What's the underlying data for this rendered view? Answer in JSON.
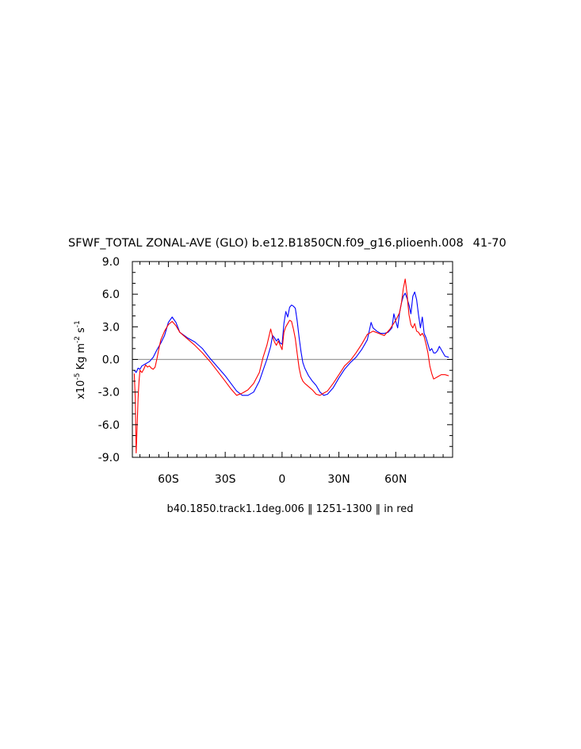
{
  "chart_data": {
    "type": "line",
    "title": "SFWF_TOTAL ZONAL-AVE (GLO) b.e12.B1850CN.f09_g16.plioenh.008  41-70 ",
    "title_markers": [
      "‖",
      "‖"
    ],
    "subtitle": "b40.1850.track1.1deg.006 ‖ 1251-1300 ‖ in red",
    "xlabel": "",
    "ylabel": {
      "prefix": "x10",
      "exp": "-5",
      "unit": "Kg m",
      "unit_exp": "-2",
      "unit2": "s",
      "unit2_exp": "-1"
    },
    "xlim": [
      -79,
      90
    ],
    "ylim": [
      -9,
      9
    ],
    "grid": false,
    "zero_line": true,
    "x_ticks": [
      {
        "value": -60,
        "label": "60S"
      },
      {
        "value": -30,
        "label": "30S"
      },
      {
        "value": 0,
        "label": "0"
      },
      {
        "value": 30,
        "label": "30N"
      },
      {
        "value": 60,
        "label": "60N"
      }
    ],
    "y_ticks": [
      {
        "value": 9,
        "label": "9.0"
      },
      {
        "value": 6,
        "label": "6.0"
      },
      {
        "value": 3,
        "label": "3.0"
      },
      {
        "value": 0,
        "label": "0.0"
      },
      {
        "value": -3,
        "label": "-3.0"
      },
      {
        "value": -6,
        "label": "-6.0"
      },
      {
        "value": -9,
        "label": "-9.0"
      }
    ],
    "series": [
      {
        "color": "#0000ff",
        "x": [
          -78,
          -77,
          -76,
          -75,
          -74,
          -72,
          -70,
          -68,
          -66,
          -64,
          -62,
          -60,
          -58,
          -56,
          -54,
          -50,
          -46,
          -42,
          -38,
          -34,
          -30,
          -27,
          -24,
          -21,
          -18,
          -15,
          -12,
          -10,
          -8,
          -6,
          -5,
          -4,
          -3,
          -2,
          -1,
          0,
          1,
          2,
          3,
          4,
          5,
          6,
          7,
          8,
          9,
          10,
          11,
          12,
          14,
          16,
          18,
          20,
          22,
          24,
          27,
          30,
          33,
          36,
          39,
          42,
          45,
          47,
          48,
          50,
          52,
          54,
          56,
          58,
          59,
          60,
          61,
          62,
          63,
          64,
          65,
          66,
          67,
          68,
          69,
          70,
          71,
          72,
          73,
          74,
          75,
          76,
          77,
          78,
          79,
          80,
          81,
          82,
          83,
          84,
          86,
          88
        ],
        "y": [
          -1.0,
          -1.2,
          -0.8,
          -0.9,
          -0.6,
          -0.4,
          -0.2,
          0.2,
          0.9,
          1.5,
          2.2,
          3.4,
          3.9,
          3.4,
          2.5,
          2.0,
          1.6,
          1.0,
          0.1,
          -0.7,
          -1.5,
          -2.2,
          -2.9,
          -3.3,
          -3.3,
          -3.0,
          -2.0,
          -1.0,
          0.0,
          1.2,
          2.2,
          2.0,
          1.7,
          1.9,
          1.5,
          1.4,
          3.3,
          4.4,
          3.9,
          4.8,
          5.0,
          4.9,
          4.7,
          3.5,
          2.0,
          0.7,
          -0.3,
          -0.8,
          -1.5,
          -2.0,
          -2.4,
          -3.0,
          -3.3,
          -3.2,
          -2.6,
          -1.7,
          -0.9,
          -0.3,
          0.2,
          0.9,
          1.8,
          3.4,
          2.9,
          2.6,
          2.4,
          2.4,
          2.5,
          2.9,
          4.2,
          3.5,
          2.9,
          4.3,
          5.2,
          5.8,
          6.1,
          5.6,
          5.0,
          4.2,
          5.8,
          6.2,
          5.5,
          4.1,
          2.9,
          3.9,
          2.4,
          2.0,
          1.4,
          0.8,
          1.0,
          0.6,
          0.6,
          0.8,
          1.2,
          0.9,
          0.3,
          0.2
        ]
      },
      {
        "color": "#ff0000",
        "x": [
          -78,
          -77.5,
          -77,
          -76.5,
          -76,
          -75.5,
          -75,
          -74,
          -73,
          -72,
          -71,
          -70,
          -69,
          -68,
          -67,
          -66,
          -65,
          -64,
          -62,
          -60,
          -58,
          -56,
          -54,
          -52,
          -50,
          -46,
          -42,
          -38,
          -34,
          -30,
          -27,
          -24,
          -21,
          -18,
          -15,
          -12,
          -10,
          -8,
          -6,
          -5,
          -4,
          -3,
          -2,
          -1,
          0,
          1,
          2,
          3,
          4,
          5,
          6,
          7,
          8,
          9,
          10,
          11,
          12,
          14,
          16,
          18,
          20,
          22,
          24,
          27,
          30,
          33,
          36,
          39,
          42,
          45,
          48,
          51,
          54,
          57,
          60,
          62,
          63,
          64,
          65,
          66,
          66.5,
          67,
          68,
          69,
          70,
          71,
          72,
          73,
          74,
          75,
          76,
          77,
          78,
          79,
          80,
          82,
          84,
          86,
          88
        ],
        "y": [
          -1.3,
          -3.5,
          -8.6,
          -6.2,
          -3.6,
          -2.0,
          -1.0,
          -1.2,
          -0.9,
          -0.5,
          -0.7,
          -0.6,
          -0.8,
          -0.9,
          -0.7,
          0.1,
          1.0,
          1.8,
          2.6,
          3.2,
          3.5,
          3.1,
          2.5,
          2.2,
          1.9,
          1.3,
          0.6,
          -0.2,
          -1.1,
          -2.0,
          -2.7,
          -3.3,
          -3.1,
          -2.8,
          -2.2,
          -1.2,
          0.2,
          1.3,
          2.8,
          2.1,
          1.6,
          1.3,
          1.7,
          1.3,
          0.9,
          2.5,
          3.0,
          3.3,
          3.6,
          3.5,
          2.8,
          1.9,
          0.5,
          -0.8,
          -1.6,
          -2.0,
          -2.2,
          -2.5,
          -2.8,
          -3.2,
          -3.3,
          -3.1,
          -2.9,
          -2.2,
          -1.4,
          -0.6,
          -0.1,
          0.6,
          1.4,
          2.3,
          2.6,
          2.4,
          2.2,
          2.8,
          3.6,
          4.3,
          5.2,
          6.5,
          7.4,
          6.0,
          5.0,
          4.1,
          3.2,
          2.9,
          3.3,
          2.6,
          2.5,
          2.2,
          2.4,
          2.1,
          1.4,
          0.6,
          -0.6,
          -1.3,
          -1.8,
          -1.6,
          -1.4,
          -1.4,
          -1.5
        ]
      }
    ]
  }
}
